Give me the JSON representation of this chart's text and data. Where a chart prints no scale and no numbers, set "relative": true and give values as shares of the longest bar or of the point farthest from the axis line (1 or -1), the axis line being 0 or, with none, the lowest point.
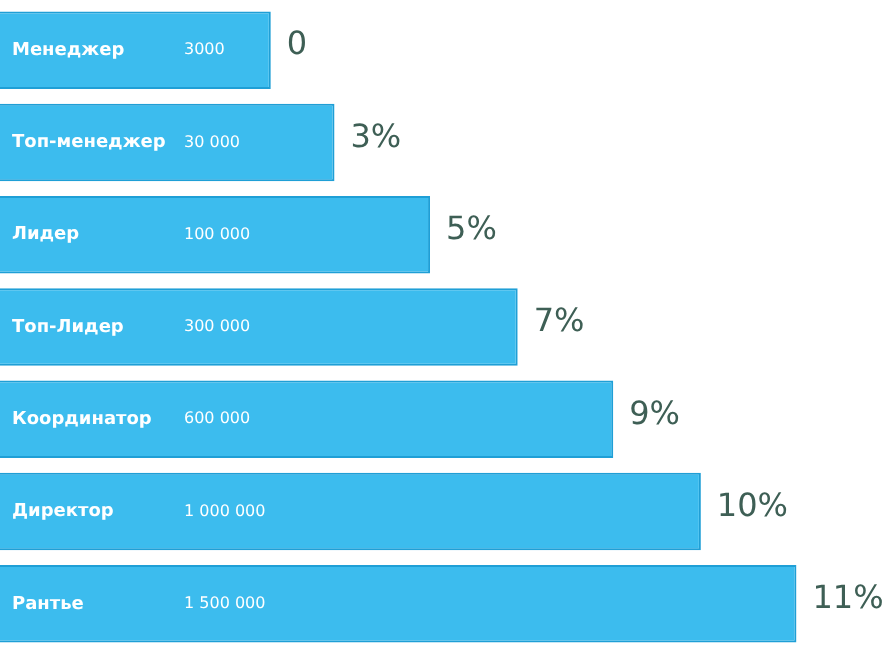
{
  "chart_data": {
    "type": "bar",
    "orientation": "horizontal",
    "relative": true,
    "categories": [
      "Менеджер",
      "Топ-менеджер",
      "Лидер",
      "Топ-Лидер",
      "Координатор",
      "Директор",
      "Рантье"
    ],
    "values": [
      0.34,
      0.42,
      0.54,
      0.65,
      0.77,
      0.88,
      1
    ],
    "color": "#3cbcee",
    "annotations": [
      {
        "text": "3000",
        "y": "Менеджер"
      },
      {
        "text": "30 000",
        "y": "Топ-менеджер"
      },
      {
        "text": "100 000",
        "y": "Лидер"
      },
      {
        "text": "300 000",
        "y": "Топ-Лидер"
      },
      {
        "text": "600 000",
        "y": "Координатор"
      },
      {
        "text": "1 000 000",
        "y": "Директор"
      },
      {
        "text": "1 500 000",
        "y": "Рантье"
      },
      {
        "text": "0",
        "x": 0.34,
        "y": "Менеджер"
      },
      {
        "text": "3%",
        "x": 0.42,
        "y": "Топ-менеджер"
      },
      {
        "text": "5%",
        "x": 0.54,
        "y": "Лидер"
      },
      {
        "text": "7%",
        "x": 0.65,
        "y": "Топ-Лидер"
      },
      {
        "text": "9%",
        "x": 0.77,
        "y": "Координатор"
      },
      {
        "text": "10%",
        "x": 0.88,
        "y": "Директор"
      },
      {
        "text": "11%",
        "x": 1,
        "y": "Рантье"
      }
    ],
    "legend": false
  }
}
